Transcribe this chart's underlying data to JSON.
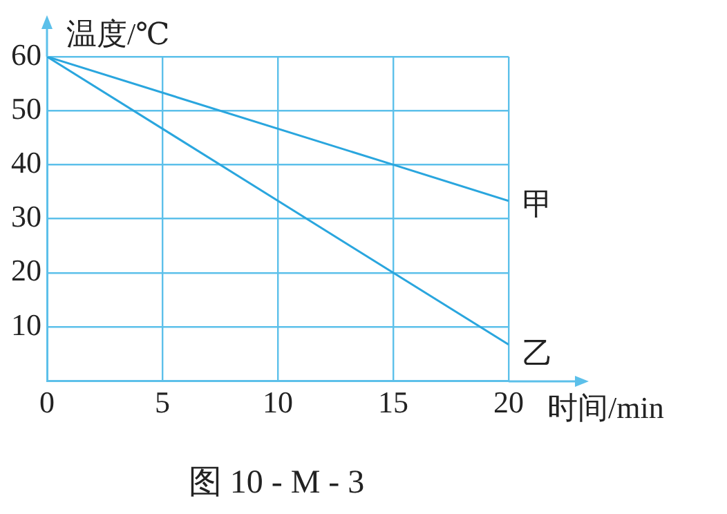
{
  "chart_data": {
    "type": "line",
    "xlabel": "时间/min",
    "ylabel": "温度/℃",
    "annotations": [
      "图 10 - M - 3"
    ],
    "xlim": [
      0,
      20
    ],
    "ylim": [
      0,
      60
    ],
    "xticks": [
      0,
      5,
      10,
      15,
      20
    ],
    "yticks": [
      {
        "value": 0,
        "label": null
      },
      10,
      20,
      30,
      40,
      50,
      60
    ],
    "grid": true,
    "legend": false,
    "marker": "none",
    "line_style": "solid",
    "series": [
      {
        "name": "甲",
        "color": "#2aa6de",
        "x": [
          0,
          15,
          20
        ],
        "values": [
          60,
          40,
          33.3
        ]
      },
      {
        "name": "乙",
        "color": "#2aa6de",
        "x": [
          0,
          15,
          20
        ],
        "values": [
          60,
          20,
          6.7
        ]
      }
    ]
  }
}
